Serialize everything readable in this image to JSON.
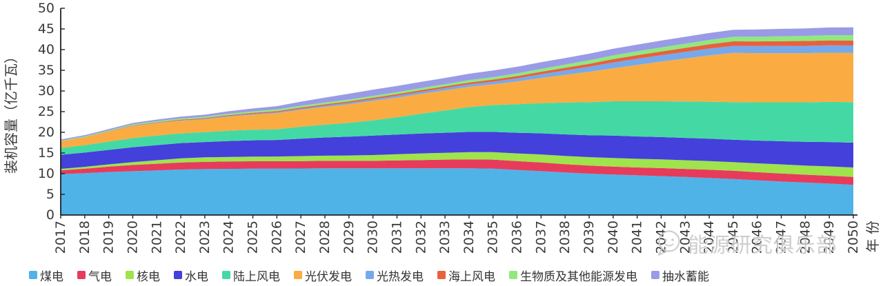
{
  "figure": {
    "watermark": {
      "text": "能源研究俱乐部",
      "color": "#c8c8c8",
      "logo": "speech-bubble-face"
    }
  },
  "chart_data": {
    "type": "area",
    "stacked": true,
    "title": "",
    "xlabel": "年 份",
    "ylabel": "装机容量（亿千瓦）",
    "ylim": [
      0,
      50
    ],
    "ytick_step": 5,
    "grid": false,
    "legend_position": "bottom",
    "x": [
      2017,
      2018,
      2019,
      2020,
      2021,
      2022,
      2023,
      2024,
      2025,
      2026,
      2027,
      2028,
      2029,
      2030,
      2031,
      2032,
      2033,
      2034,
      2035,
      2036,
      2037,
      2038,
      2039,
      2040,
      2041,
      2042,
      2043,
      2044,
      2045,
      2046,
      2047,
      2048,
      2049,
      2050
    ],
    "series": [
      {
        "name": "煤电",
        "color": "#4FB3E8",
        "values": [
          9.9,
          10.1,
          10.4,
          10.6,
          10.8,
          11.0,
          11.1,
          11.15,
          11.2,
          11.2,
          11.25,
          11.3,
          11.3,
          11.3,
          11.3,
          11.3,
          11.3,
          11.3,
          11.2,
          10.9,
          10.6,
          10.3,
          10.0,
          9.8,
          9.6,
          9.4,
          9.2,
          8.95,
          8.7,
          8.4,
          8.1,
          7.85,
          7.6,
          7.3
        ]
      },
      {
        "name": "气电",
        "color": "#E73B5C",
        "values": [
          0.9,
          1.1,
          1.3,
          1.5,
          1.6,
          1.7,
          1.75,
          1.8,
          1.8,
          1.8,
          1.8,
          1.8,
          1.8,
          1.8,
          1.9,
          2.0,
          2.1,
          2.15,
          2.2,
          2.15,
          2.1,
          2.0,
          1.95,
          1.9,
          1.9,
          1.95,
          1.95,
          2.0,
          2.0,
          1.95,
          1.95,
          1.9,
          1.9,
          1.9
        ]
      },
      {
        "name": "核电",
        "color": "#9FE34D",
        "values": [
          0.37,
          0.45,
          0.55,
          0.7,
          0.85,
          1.0,
          1.1,
          1.1,
          1.12,
          1.15,
          1.2,
          1.25,
          1.3,
          1.4,
          1.5,
          1.6,
          1.65,
          1.75,
          1.8,
          1.85,
          1.95,
          2.0,
          2.05,
          2.1,
          2.1,
          2.1,
          2.1,
          2.1,
          2.1,
          2.15,
          2.2,
          2.2,
          2.25,
          2.3
        ]
      },
      {
        "name": "水电",
        "color": "#4440DB",
        "values": [
          3.4,
          3.45,
          3.5,
          3.6,
          3.65,
          3.7,
          3.7,
          3.85,
          3.95,
          4.0,
          4.2,
          4.4,
          4.55,
          4.7,
          4.75,
          4.8,
          4.85,
          4.9,
          4.9,
          5.0,
          5.1,
          5.2,
          5.3,
          5.4,
          5.4,
          5.4,
          5.4,
          5.4,
          5.4,
          5.5,
          5.6,
          5.75,
          5.9,
          6.0
        ]
      },
      {
        "name": "陆上风电",
        "color": "#44D9A4",
        "values": [
          1.65,
          1.8,
          2.0,
          2.2,
          2.3,
          2.35,
          2.4,
          2.5,
          2.55,
          2.6,
          2.9,
          3.1,
          3.35,
          3.7,
          4.2,
          4.8,
          5.4,
          6.0,
          6.5,
          6.9,
          7.3,
          7.7,
          8.0,
          8.3,
          8.5,
          8.65,
          8.8,
          8.95,
          9.1,
          9.25,
          9.4,
          9.55,
          9.7,
          9.8
        ]
      },
      {
        "name": "光伏发电",
        "color": "#FAAC42",
        "values": [
          1.6,
          1.9,
          2.4,
          2.9,
          3.0,
          3.05,
          3.1,
          3.4,
          3.65,
          3.9,
          4.1,
          4.3,
          4.5,
          4.7,
          4.75,
          4.8,
          4.85,
          4.9,
          5.0,
          5.5,
          6.1,
          6.7,
          7.35,
          8.0,
          8.8,
          9.6,
          10.4,
          11.2,
          11.9,
          11.9,
          11.9,
          11.9,
          11.9,
          11.9
        ]
      },
      {
        "name": "光热发电",
        "color": "#76A9EC",
        "values": [
          0.02,
          0.03,
          0.04,
          0.06,
          0.08,
          0.1,
          0.12,
          0.15,
          0.18,
          0.2,
          0.25,
          0.3,
          0.35,
          0.4,
          0.45,
          0.5,
          0.55,
          0.6,
          0.65,
          0.75,
          0.9,
          1.05,
          1.2,
          1.4,
          1.5,
          1.55,
          1.6,
          1.65,
          1.7,
          1.72,
          1.75,
          1.77,
          1.8,
          1.8
        ]
      },
      {
        "name": "海上风电",
        "color": "#E9603D",
        "values": [
          0.03,
          0.05,
          0.08,
          0.1,
          0.13,
          0.16,
          0.2,
          0.22,
          0.25,
          0.28,
          0.3,
          0.32,
          0.34,
          0.36,
          0.38,
          0.4,
          0.42,
          0.45,
          0.5,
          0.55,
          0.6,
          0.65,
          0.72,
          0.8,
          0.85,
          0.9,
          0.97,
          1.03,
          1.1,
          1.12,
          1.15,
          1.17,
          1.18,
          1.2
        ]
      },
      {
        "name": "生物质及其他能源发电",
        "color": "#8FE97D",
        "values": [
          0.12,
          0.16,
          0.2,
          0.25,
          0.27,
          0.28,
          0.3,
          0.33,
          0.36,
          0.4,
          0.42,
          0.43,
          0.44,
          0.45,
          0.48,
          0.5,
          0.53,
          0.56,
          0.6,
          0.65,
          0.7,
          0.77,
          0.85,
          0.9,
          0.95,
          1.0,
          1.02,
          1.05,
          1.1,
          1.14,
          1.18,
          1.22,
          1.26,
          1.3
        ]
      },
      {
        "name": "抽水蓄能",
        "color": "#9A9BE6",
        "values": [
          0.28,
          0.3,
          0.32,
          0.35,
          0.4,
          0.45,
          0.5,
          0.6,
          0.7,
          0.8,
          1.0,
          1.2,
          1.4,
          1.5,
          1.5,
          1.5,
          1.5,
          1.55,
          1.6,
          1.6,
          1.6,
          1.6,
          1.6,
          1.6,
          1.62,
          1.64,
          1.66,
          1.68,
          1.7,
          1.74,
          1.78,
          1.82,
          1.86,
          1.9
        ]
      }
    ]
  }
}
